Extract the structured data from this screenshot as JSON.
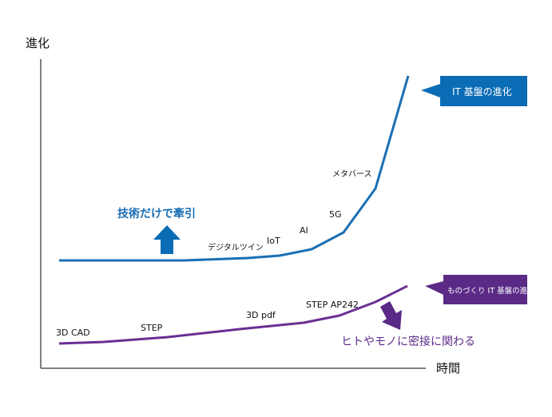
{
  "axes": {
    "y_label": "進化",
    "x_label": "時間"
  },
  "it_curve": {
    "callout": "IT 基盤の進化",
    "milestones": [
      "デジタルツイン",
      "IoT",
      "AI",
      "5G",
      "メタバース"
    ],
    "color": "#1a6fb3",
    "callout_color": "#0a6cb4"
  },
  "mono_curve": {
    "callout": "ものづくり IT 基盤の進化",
    "milestones": [
      "3D CAD",
      "STEP",
      "3D pdf",
      "STEP AP242"
    ],
    "color": "#6a2f93",
    "callout_color": "#5b2a86"
  },
  "arrows": {
    "up_label": "技術だけで牽引",
    "down_label": "ヒトやモノに密接に関わる"
  }
}
